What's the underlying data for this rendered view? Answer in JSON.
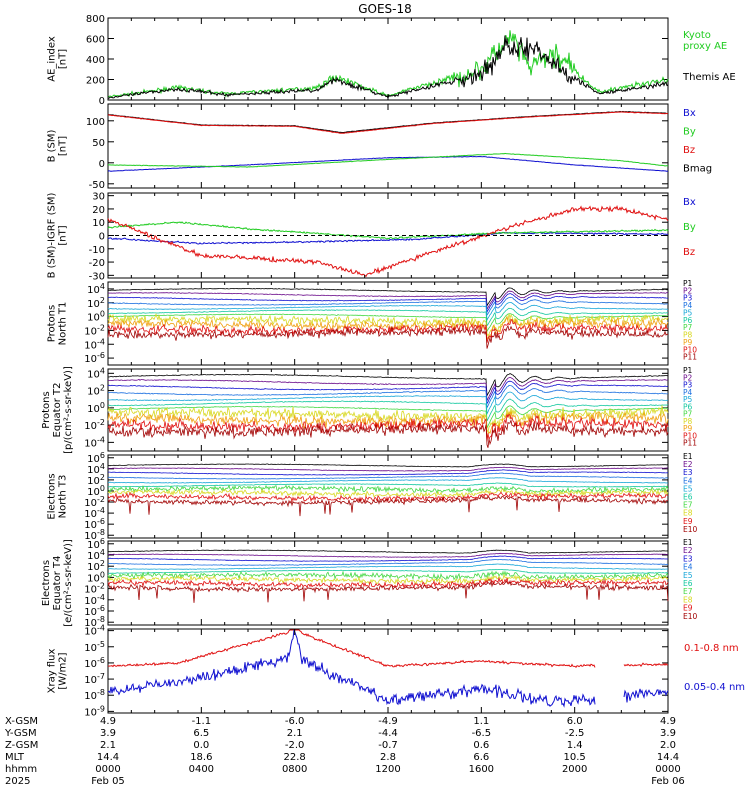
{
  "title": "GOES-18",
  "colors": {
    "black": "#000000",
    "blue": "#1010d0",
    "green": "#22cc22",
    "red": "#e01010",
    "darkred": "#a00000",
    "bright_green": "#33ee33"
  },
  "panels": [
    {
      "id": "ae",
      "ylabel": [
        "AE_index",
        "[nT]"
      ],
      "ticks": [
        "800",
        "600",
        "400",
        "200",
        "0"
      ],
      "tick_values": [
        800,
        600,
        400,
        200,
        0
      ],
      "ylim": [
        0,
        800
      ],
      "scale": "linear",
      "legend": [
        {
          "text": "Kyoto",
          "color": "#22cc22"
        },
        {
          "text": "proxy AE",
          "color": "#22cc22"
        },
        {
          "text": "Themis AE",
          "color": "#000000"
        }
      ]
    },
    {
      "id": "bsm",
      "ylabel": [
        "B (SM)",
        "[nT]"
      ],
      "ticks": [
        "100",
        "50",
        "0",
        "-50"
      ],
      "tick_values": [
        100,
        50,
        0,
        -50
      ],
      "ylim": [
        -60,
        140
      ],
      "scale": "linear",
      "legend": [
        {
          "text": "Bx",
          "color": "#1010d0"
        },
        {
          "text": "By",
          "color": "#22cc22"
        },
        {
          "text": "Bz",
          "color": "#e01010"
        },
        {
          "text": "Bmag",
          "color": "#000000"
        }
      ]
    },
    {
      "id": "bigrf",
      "ylabel": [
        "B (SM)-IGRF (SM)",
        "[nT]"
      ],
      "ticks": [
        "30",
        "20",
        "10",
        "0",
        "-10",
        "-20",
        "-30"
      ],
      "tick_values": [
        30,
        20,
        10,
        0,
        -10,
        -20,
        -30
      ],
      "ylim": [
        -32,
        32
      ],
      "scale": "linear",
      "legend": [
        {
          "text": "Bx",
          "color": "#1010d0"
        },
        {
          "text": "By",
          "color": "#22cc22"
        },
        {
          "text": "Bz",
          "color": "#e01010"
        }
      ]
    },
    {
      "id": "protons_t1",
      "ylabel": [
        "Protons",
        "North T1"
      ],
      "ticks": [
        "10^4",
        "10^2",
        "10^0",
        "10^-2",
        "10^-4",
        "10^-6"
      ],
      "tick_values": [
        4,
        2,
        0,
        -2,
        -4,
        -6
      ],
      "ylim": [
        -7,
        5
      ],
      "scale": "log",
      "legend": [
        {
          "text": "P1",
          "color": "#000000"
        },
        {
          "text": "P2",
          "color": "#6a0a8a"
        },
        {
          "text": "P3",
          "color": "#1010d0"
        },
        {
          "text": "P4",
          "color": "#1a6fe0"
        },
        {
          "text": "P5",
          "color": "#16a6d8"
        },
        {
          "text": "P6",
          "color": "#14c8a0"
        },
        {
          "text": "P7",
          "color": "#44d844"
        },
        {
          "text": "P8",
          "color": "#d8d820"
        },
        {
          "text": "P9",
          "color": "#f0a010"
        },
        {
          "text": "P10",
          "color": "#e01010"
        },
        {
          "text": "P11",
          "color": "#a00000"
        }
      ]
    },
    {
      "id": "protons_t2",
      "ylabel": [
        "Protons",
        "Equator T2",
        "[p/(cm²-s-sr-keV)]"
      ],
      "ticks": [
        "10^4",
        "10^2",
        "10^0",
        "10^-2",
        "10^-4"
      ],
      "tick_values": [
        4,
        2,
        0,
        -2,
        -4
      ],
      "ylim": [
        -5,
        4.5
      ],
      "scale": "log",
      "legend": [
        {
          "text": "P1",
          "color": "#000000"
        },
        {
          "text": "P2",
          "color": "#6a0a8a"
        },
        {
          "text": "P3",
          "color": "#1010d0"
        },
        {
          "text": "P4",
          "color": "#1a6fe0"
        },
        {
          "text": "P5",
          "color": "#16a6d8"
        },
        {
          "text": "P6",
          "color": "#14c8a0"
        },
        {
          "text": "P7",
          "color": "#44d844"
        },
        {
          "text": "P8",
          "color": "#d8d820"
        },
        {
          "text": "P9",
          "color": "#f0a010"
        },
        {
          "text": "P10",
          "color": "#e01010"
        },
        {
          "text": "P11",
          "color": "#a00000"
        }
      ]
    },
    {
      "id": "electrons_t3",
      "ylabel": [
        "Electrons",
        "North T3"
      ],
      "ticks": [
        "10^6",
        "10^4",
        "10^2",
        "10^0",
        "10^-2",
        "10^-4",
        "10^-6",
        "10^-8"
      ],
      "tick_values": [
        6,
        4,
        2,
        0,
        -2,
        -4,
        -6,
        -8
      ],
      "ylim": [
        -8.5,
        6.5
      ],
      "scale": "log",
      "legend": [
        {
          "text": "E1",
          "color": "#000000"
        },
        {
          "text": "E2",
          "color": "#6a0a8a"
        },
        {
          "text": "E3",
          "color": "#1010d0"
        },
        {
          "text": "E4",
          "color": "#1a6fe0"
        },
        {
          "text": "E5",
          "color": "#16a6d8"
        },
        {
          "text": "E6",
          "color": "#14c8a0"
        },
        {
          "text": "E7",
          "color": "#44d844"
        },
        {
          "text": "E8",
          "color": "#d8d820"
        },
        {
          "text": "E9",
          "color": "#e01010"
        },
        {
          "text": "E10",
          "color": "#a00000"
        }
      ]
    },
    {
      "id": "electrons_t4",
      "ylabel": [
        "Electrons",
        "Equator T4",
        "[e/(cm²-s-sr-keV)]"
      ],
      "ticks": [
        "10^6",
        "10^4",
        "10^2",
        "10^0",
        "10^-2",
        "10^-4",
        "10^-6",
        "10^-8"
      ],
      "tick_values": [
        6,
        4,
        2,
        0,
        -2,
        -4,
        -6,
        -8
      ],
      "ylim": [
        -8.5,
        6.5
      ],
      "scale": "log",
      "legend": [
        {
          "text": "E1",
          "color": "#000000"
        },
        {
          "text": "E2",
          "color": "#6a0a8a"
        },
        {
          "text": "E3",
          "color": "#1010d0"
        },
        {
          "text": "E4",
          "color": "#1a6fe0"
        },
        {
          "text": "E5",
          "color": "#16a6d8"
        },
        {
          "text": "E6",
          "color": "#14c8a0"
        },
        {
          "text": "E7",
          "color": "#44d844"
        },
        {
          "text": "E8",
          "color": "#d8d820"
        },
        {
          "text": "E9",
          "color": "#e01010"
        },
        {
          "text": "E10",
          "color": "#a00000"
        }
      ]
    },
    {
      "id": "xray",
      "ylabel": [
        "Xray flux",
        "[W/m2]"
      ],
      "ticks": [
        "10^-4",
        "10^-5",
        "10^-6",
        "10^-7",
        "10^-8",
        "10^-9"
      ],
      "tick_values": [
        -4,
        -5,
        -6,
        -7,
        -8,
        -9
      ],
      "ylim": [
        -9.1,
        -3.9
      ],
      "scale": "log",
      "legend": [
        {
          "text": "0.1-0.8 nm",
          "color": "#e01010"
        },
        {
          "text": "0.05-0.4 nm",
          "color": "#1010d0"
        }
      ]
    }
  ],
  "xaxis": {
    "tick_hours": [
      0,
      4,
      8,
      12,
      16,
      20,
      24
    ],
    "rows": [
      {
        "label": "X-GSM",
        "values": [
          "4.9",
          "-1.1",
          "-6.0",
          "-4.9",
          "1.1",
          "6.0",
          "4.9"
        ]
      },
      {
        "label": "Y-GSM",
        "values": [
          "3.9",
          "6.5",
          "2.1",
          "-4.4",
          "-6.5",
          "-2.5",
          "3.9"
        ]
      },
      {
        "label": "Z-GSM",
        "values": [
          "2.1",
          "0.0",
          "-2.0",
          "-0.7",
          "0.6",
          "1.4",
          "2.0"
        ]
      },
      {
        "label": "MLT",
        "values": [
          "14.4",
          "18.6",
          "22.8",
          "2.8",
          "6.6",
          "10.5",
          "14.4"
        ]
      },
      {
        "label": "hhmm",
        "values": [
          "0000",
          "0400",
          "0800",
          "1200",
          "1600",
          "2000",
          "0000"
        ]
      },
      {
        "label": "2025",
        "values": [
          "Feb 05",
          "",
          "",
          "",
          "",
          "",
          "Feb 06"
        ]
      }
    ]
  },
  "chart_data": {
    "type": "line",
    "title": "GOES-18",
    "x_range_hours": [
      0,
      24
    ],
    "series_summary": [
      {
        "panel": "AE_index",
        "name": "Kyoto proxy AE",
        "points_h": [
          [
            0,
            30
          ],
          [
            3,
            120
          ],
          [
            5,
            60
          ],
          [
            9,
            120
          ],
          [
            9.7,
            230
          ],
          [
            12,
            40
          ],
          [
            16,
            300
          ],
          [
            17.3,
            620
          ],
          [
            18,
            320
          ],
          [
            19.2,
            450
          ],
          [
            21,
            80
          ],
          [
            24,
            200
          ]
        ]
      },
      {
        "panel": "AE_index",
        "name": "Themis AE",
        "points_h": [
          [
            0,
            20
          ],
          [
            3,
            110
          ],
          [
            5,
            50
          ],
          [
            9,
            100
          ],
          [
            9.7,
            200
          ],
          [
            12,
            30
          ],
          [
            16,
            250
          ],
          [
            17.2,
            550
          ],
          [
            18.8,
            420
          ],
          [
            21,
            60
          ],
          [
            24,
            160
          ]
        ]
      },
      {
        "panel": "B (SM)",
        "name": "Bmag",
        "points_h": [
          [
            0,
            115
          ],
          [
            4,
            90
          ],
          [
            8,
            88
          ],
          [
            10,
            72
          ],
          [
            14,
            95
          ],
          [
            18,
            110
          ],
          [
            22,
            122
          ],
          [
            24,
            118
          ]
        ]
      },
      {
        "panel": "B (SM)",
        "name": "Bz",
        "points_h": [
          [
            0,
            114
          ],
          [
            4,
            89
          ],
          [
            8,
            87
          ],
          [
            10,
            70
          ],
          [
            14,
            94
          ],
          [
            18,
            109
          ],
          [
            22,
            121
          ],
          [
            24,
            117
          ]
        ]
      },
      {
        "panel": "B (SM)",
        "name": "Bx",
        "points_h": [
          [
            0,
            -20
          ],
          [
            6,
            -5
          ],
          [
            12,
            12
          ],
          [
            16,
            15
          ],
          [
            20,
            -5
          ],
          [
            24,
            -20
          ]
        ]
      },
      {
        "panel": "B (SM)",
        "name": "By",
        "points_h": [
          [
            0,
            -5
          ],
          [
            6,
            -10
          ],
          [
            12,
            8
          ],
          [
            17,
            22
          ],
          [
            22,
            5
          ],
          [
            24,
            -8
          ]
        ]
      },
      {
        "panel": "B (SM)-IGRF (SM)",
        "name": "Bx",
        "points_h": [
          [
            0,
            -2
          ],
          [
            4,
            -6
          ],
          [
            8,
            -5
          ],
          [
            13,
            -3
          ],
          [
            17,
            2
          ],
          [
            24,
            1
          ]
        ]
      },
      {
        "panel": "B (SM)-IGRF (SM)",
        "name": "By",
        "points_h": [
          [
            0,
            6
          ],
          [
            3,
            10
          ],
          [
            6,
            5
          ],
          [
            12,
            -2
          ],
          [
            17,
            2
          ],
          [
            24,
            4
          ]
        ]
      },
      {
        "panel": "B (SM)-IGRF (SM)",
        "name": "Bz",
        "points_h": [
          [
            0,
            12
          ],
          [
            4,
            -15
          ],
          [
            9,
            -20
          ],
          [
            11,
            -30
          ],
          [
            14,
            -12
          ],
          [
            17,
            5
          ],
          [
            20,
            20
          ],
          [
            22,
            20
          ],
          [
            24,
            12
          ]
        ]
      },
      {
        "panel": "Xray flux",
        "name": "0.1-0.8 nm",
        "points_h": [
          [
            0,
            -6.2
          ],
          [
            3,
            -6.0
          ],
          [
            8,
            -4.0
          ],
          [
            12,
            -6.2
          ],
          [
            16,
            -5.9
          ],
          [
            20,
            -6.2
          ],
          [
            24,
            -6.1
          ]
        ]
      },
      {
        "panel": "Xray flux",
        "name": "0.05-0.4 nm",
        "points_h": [
          [
            0,
            -7.8
          ],
          [
            3,
            -7.2
          ],
          [
            8,
            -5.6
          ],
          [
            12,
            -8.3
          ],
          [
            16,
            -7.6
          ],
          [
            19,
            -8.4
          ],
          [
            24,
            -7.8
          ]
        ]
      }
    ]
  }
}
